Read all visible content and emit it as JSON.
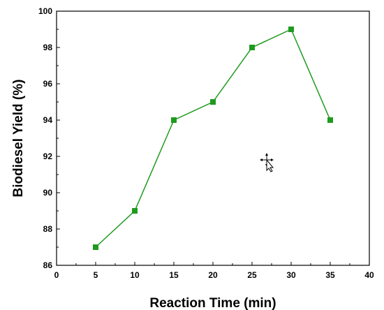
{
  "chart_data": {
    "type": "line",
    "xlabel": "Reaction Time (min)",
    "ylabel": "Biodiesel Yield (%)",
    "xlim": [
      0,
      40
    ],
    "ylim": [
      86,
      100
    ],
    "x_ticks": [
      "0",
      "5",
      "10",
      "15",
      "20",
      "25",
      "30",
      "35",
      "40"
    ],
    "y_ticks": [
      "86",
      "88",
      "90",
      "92",
      "94",
      "96",
      "98",
      "100"
    ],
    "grid": false,
    "marker": "square",
    "colors": {
      "series": "#1f9a1f",
      "axis": "#000000"
    },
    "series": [
      {
        "x": [
          5,
          10,
          15,
          20,
          25,
          30,
          35
        ],
        "y": [
          87,
          89,
          94,
          95,
          98,
          99,
          94
        ]
      }
    ]
  },
  "overlay": {
    "cursor_icon": "move-cursor-icon"
  }
}
